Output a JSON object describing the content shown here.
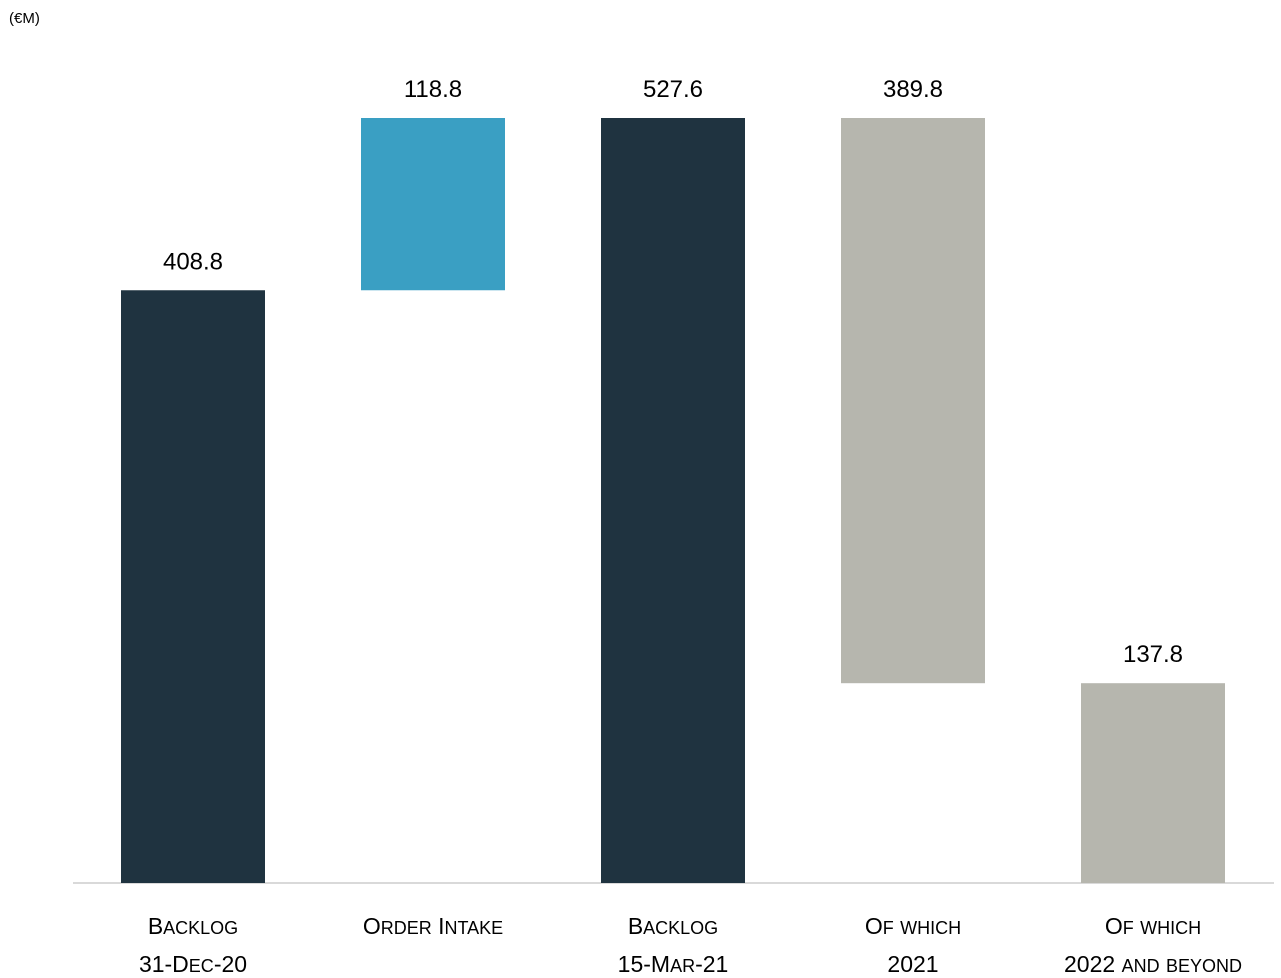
{
  "unit_label": "(€M)",
  "chart_data": {
    "type": "waterfall",
    "unit": "(€M)",
    "colors": {
      "backlog": "#1f3340",
      "intake": "#3a9fc3",
      "split": "#b6b6ae",
      "axis": "#d9d9d9"
    },
    "bars": [
      {
        "category_line1": "Backlog",
        "category_line2": "31-Dec-20",
        "value": 408.8,
        "label": "408.8",
        "base": 0,
        "kind": "backlog"
      },
      {
        "category_line1": "Order Intake",
        "category_line2": "",
        "value": 118.8,
        "label": "118.8",
        "base": 408.8,
        "kind": "intake"
      },
      {
        "category_line1": "Backlog",
        "category_line2": "15-Mar-21",
        "value": 527.6,
        "label": "527.6",
        "base": 0,
        "kind": "backlog"
      },
      {
        "category_line1": "Of which",
        "category_line2": "2021",
        "value": 389.8,
        "label": "389.8",
        "base": 137.8,
        "kind": "split"
      },
      {
        "category_line1": "Of which",
        "category_line2": "2022 and beyond",
        "value": 137.8,
        "label": "137.8",
        "base": 0,
        "kind": "split"
      }
    ],
    "ylim": [
      0,
      527.6
    ]
  }
}
